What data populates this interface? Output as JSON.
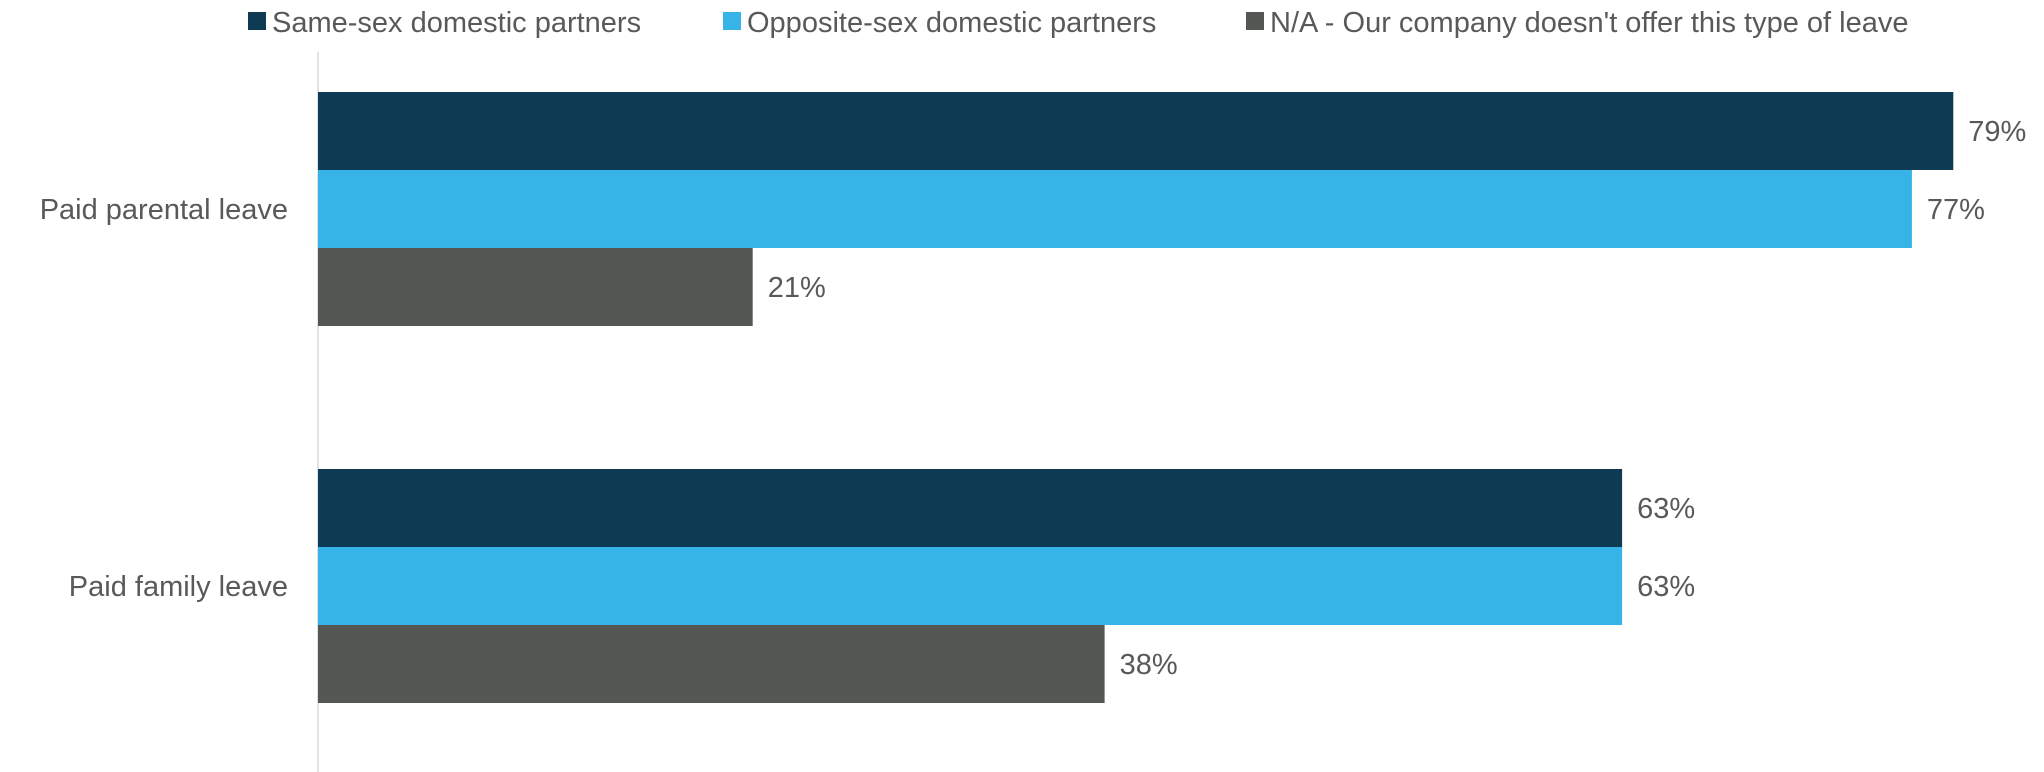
{
  "chart_data": {
    "type": "bar",
    "orientation": "horizontal",
    "categories": [
      "Paid parental leave",
      "Paid family leave"
    ],
    "series": [
      {
        "name": "Same-sex domestic partners",
        "values": [
          79,
          63
        ],
        "color": "#0f3a54"
      },
      {
        "name": "Opposite-sex domestic partners",
        "values": [
          77,
          63
        ],
        "color": "#36b3e7"
      },
      {
        "name": "N/A - Our company doesn't offer this type of leave",
        "values": [
          21,
          38
        ],
        "color": "#555754"
      }
    ],
    "value_format": "percent",
    "xlim": [
      0,
      100
    ],
    "legend_position": "top",
    "grid": false,
    "title": "",
    "xlabel": "",
    "ylabel": ""
  }
}
